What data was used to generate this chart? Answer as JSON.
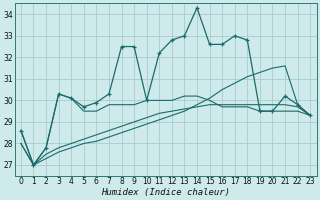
{
  "xlabel": "Humidex (Indice chaleur)",
  "background_color": "#ceeaea",
  "grid_color": "#aacccc",
  "line_color": "#1a6b6b",
  "xlim": [
    -0.5,
    23.5
  ],
  "ylim": [
    26.5,
    34.5
  ],
  "yticks": [
    27,
    28,
    29,
    30,
    31,
    32,
    33,
    34
  ],
  "xticks": [
    0,
    1,
    2,
    3,
    4,
    5,
    6,
    7,
    8,
    9,
    10,
    11,
    12,
    13,
    14,
    15,
    16,
    17,
    18,
    19,
    20,
    21,
    22,
    23
  ],
  "series": [
    {
      "x": [
        0,
        1,
        2,
        3,
        4,
        5,
        6,
        7,
        8,
        9,
        10,
        11,
        12,
        13,
        14,
        15,
        16,
        17,
        18,
        19,
        20,
        21,
        22,
        23
      ],
      "y": [
        28.6,
        27.0,
        27.8,
        30.3,
        30.1,
        29.7,
        29.9,
        30.3,
        32.5,
        32.5,
        30.0,
        32.2,
        32.8,
        33.0,
        34.3,
        32.6,
        32.6,
        33.0,
        32.8,
        29.5,
        29.5,
        30.2,
        29.8,
        29.3
      ],
      "marker": true
    },
    {
      "x": [
        0,
        1,
        2,
        3,
        4,
        5,
        6,
        7,
        8,
        9,
        10,
        11,
        12,
        13,
        14,
        15,
        16,
        17,
        18,
        19,
        20,
        21,
        22,
        23
      ],
      "y": [
        28.6,
        27.0,
        27.8,
        30.3,
        30.1,
        29.5,
        29.5,
        29.8,
        29.8,
        29.8,
        30.0,
        30.0,
        30.0,
        30.2,
        30.2,
        30.0,
        29.7,
        29.7,
        29.7,
        29.5,
        29.5,
        29.5,
        29.5,
        29.3
      ],
      "marker": false
    },
    {
      "x": [
        0,
        1,
        2,
        3,
        4,
        5,
        6,
        7,
        8,
        9,
        10,
        11,
        12,
        13,
        14,
        15,
        16,
        17,
        18,
        19,
        20,
        21,
        22,
        23
      ],
      "y": [
        28.0,
        27.0,
        27.5,
        27.8,
        28.0,
        28.2,
        28.4,
        28.6,
        28.8,
        29.0,
        29.2,
        29.4,
        29.5,
        29.6,
        29.7,
        29.8,
        29.8,
        29.8,
        29.8,
        29.8,
        29.8,
        29.8,
        29.7,
        29.3
      ],
      "marker": false
    },
    {
      "x": [
        0,
        1,
        2,
        3,
        4,
        5,
        6,
        7,
        8,
        9,
        10,
        11,
        12,
        13,
        14,
        15,
        16,
        17,
        18,
        19,
        20,
        21,
        22,
        23
      ],
      "y": [
        28.0,
        27.0,
        27.3,
        27.6,
        27.8,
        28.0,
        28.1,
        28.3,
        28.5,
        28.7,
        28.9,
        29.1,
        29.3,
        29.5,
        29.8,
        30.1,
        30.5,
        30.8,
        31.1,
        31.3,
        31.5,
        31.6,
        29.8,
        29.3
      ],
      "marker": false
    }
  ]
}
